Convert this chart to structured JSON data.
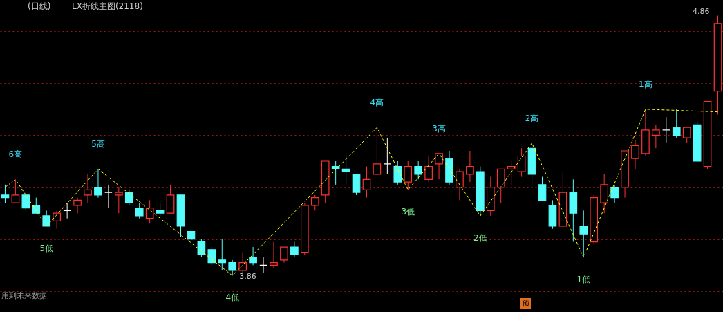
{
  "chart_data": {
    "type": "candlestick",
    "title": "(日线)",
    "subtitle": "LX折线主图(2118)",
    "categories": [
      null,
      null,
      null,
      null,
      null,
      null,
      null,
      null,
      null,
      null,
      null,
      null,
      null,
      null,
      null,
      null,
      null,
      null,
      null,
      null,
      null,
      null,
      null,
      null,
      null,
      null,
      null,
      null,
      null,
      null,
      null,
      null,
      null,
      null,
      null,
      null,
      null,
      null,
      null,
      null,
      null,
      null,
      null,
      null,
      null,
      null,
      null,
      null,
      null,
      null,
      null,
      null,
      null,
      null,
      null,
      null,
      null,
      null,
      null,
      null,
      null,
      null,
      null,
      null,
      null,
      null,
      null,
      null,
      null,
      null
    ],
    "ohlc": [
      [
        4.17,
        4.21,
        4.14,
        4.16
      ],
      [
        4.14,
        4.23,
        4.14,
        4.17
      ],
      [
        4.17,
        4.18,
        4.11,
        4.12
      ],
      [
        4.13,
        4.16,
        4.1,
        4.1
      ],
      [
        4.09,
        4.11,
        4.05,
        4.05
      ],
      [
        4.07,
        4.11,
        4.04,
        4.1
      ],
      [
        4.11,
        4.14,
        4.08,
        4.11
      ],
      [
        4.13,
        4.16,
        4.1,
        4.15
      ],
      [
        4.17,
        4.25,
        4.14,
        4.19
      ],
      [
        4.2,
        4.27,
        4.16,
        4.17
      ],
      [
        4.18,
        4.21,
        4.12,
        4.18
      ],
      [
        4.17,
        4.2,
        4.1,
        4.18
      ],
      [
        4.18,
        4.19,
        4.13,
        4.14
      ],
      [
        4.12,
        4.14,
        4.08,
        4.09
      ],
      [
        4.08,
        4.15,
        4.06,
        4.12
      ],
      [
        4.11,
        4.14,
        4.09,
        4.1
      ],
      [
        4.1,
        4.21,
        4.1,
        4.17
      ],
      [
        4.17,
        4.17,
        4.01,
        4.05
      ],
      [
        4.03,
        4.05,
        3.97,
        4.0
      ],
      [
        3.99,
        4.0,
        3.93,
        3.94
      ],
      [
        3.96,
        3.97,
        3.9,
        3.91
      ],
      [
        3.92,
        4.0,
        3.88,
        3.91
      ],
      [
        3.91,
        3.92,
        3.86,
        3.88
      ],
      [
        3.88,
        3.95,
        3.87,
        3.91
      ],
      [
        3.93,
        3.97,
        3.9,
        3.91
      ],
      [
        3.9,
        3.93,
        3.87,
        3.9
      ],
      [
        3.9,
        3.99,
        3.89,
        3.91
      ],
      [
        3.92,
        3.97,
        3.91,
        3.97
      ],
      [
        3.97,
        3.99,
        3.93,
        3.94
      ],
      [
        3.95,
        4.14,
        3.94,
        4.13
      ],
      [
        4.13,
        4.17,
        4.11,
        4.16
      ],
      [
        4.17,
        4.3,
        4.14,
        4.3
      ],
      [
        4.28,
        4.3,
        4.21,
        4.27
      ],
      [
        4.27,
        4.33,
        4.21,
        4.26
      ],
      [
        4.25,
        4.25,
        4.17,
        4.18
      ],
      [
        4.19,
        4.28,
        4.16,
        4.23
      ],
      [
        4.25,
        4.43,
        4.24,
        4.29
      ],
      [
        4.29,
        4.39,
        4.25,
        4.29
      ],
      [
        4.28,
        4.3,
        4.21,
        4.22
      ],
      [
        4.22,
        4.3,
        4.19,
        4.28
      ],
      [
        4.28,
        4.3,
        4.23,
        4.25
      ],
      [
        4.23,
        4.32,
        4.22,
        4.28
      ],
      [
        4.29,
        4.33,
        4.23,
        4.33
      ],
      [
        4.31,
        4.34,
        4.21,
        4.22
      ],
      [
        4.2,
        4.27,
        4.15,
        4.26
      ],
      [
        4.25,
        4.34,
        4.22,
        4.28
      ],
      [
        4.26,
        4.28,
        4.09,
        4.11
      ],
      [
        4.11,
        4.24,
        4.09,
        4.2
      ],
      [
        4.2,
        4.27,
        4.14,
        4.27
      ],
      [
        4.27,
        4.3,
        4.21,
        4.28
      ],
      [
        4.26,
        4.35,
        4.24,
        4.32
      ],
      [
        4.35,
        4.37,
        4.2,
        4.25
      ],
      [
        4.21,
        4.24,
        4.15,
        4.15
      ],
      [
        4.13,
        4.15,
        4.04,
        4.05
      ],
      [
        4.05,
        4.26,
        4.04,
        4.18
      ],
      [
        4.18,
        4.23,
        3.99,
        4.1
      ],
      [
        4.05,
        4.11,
        3.93,
        4.02
      ],
      [
        3.99,
        4.17,
        3.98,
        4.16
      ],
      [
        4.14,
        4.25,
        4.1,
        4.21
      ],
      [
        4.2,
        4.21,
        4.14,
        4.16
      ],
      [
        4.2,
        4.34,
        4.16,
        4.34
      ],
      [
        4.31,
        4.38,
        4.27,
        4.36
      ],
      [
        4.33,
        4.5,
        4.32,
        4.42
      ],
      [
        4.4,
        4.44,
        4.35,
        4.42
      ],
      [
        4.42,
        4.47,
        4.37,
        4.42
      ],
      [
        4.43,
        4.5,
        4.39,
        4.4
      ],
      [
        4.39,
        4.43,
        4.37,
        4.43
      ],
      [
        4.44,
        4.45,
        4.3,
        4.3
      ],
      [
        4.28,
        4.53,
        4.27,
        4.53
      ],
      [
        4.57,
        4.86,
        4.48,
        4.83
      ]
    ],
    "colors": [
      "#54fcfc",
      "#ff3232",
      "#54fcfc",
      "#54fcfc",
      "#54fcfc",
      "#ff3232",
      "#ffffff",
      "#ff3232",
      "#ff3232",
      "#54fcfc",
      "#ffffff",
      "#ff3232",
      "#54fcfc",
      "#54fcfc",
      "#ff3232",
      "#54fcfc",
      "#ff3232",
      "#54fcfc",
      "#54fcfc",
      "#54fcfc",
      "#54fcfc",
      "#54fcfc",
      "#54fcfc",
      "#ff3232",
      "#54fcfc",
      "#ffffff",
      "#ff3232",
      "#ff3232",
      "#54fcfc",
      "#ff3232",
      "#ff3232",
      "#ff3232",
      "#54fcfc",
      "#54fcfc",
      "#54fcfc",
      "#ff3232",
      "#ff3232",
      "#ffffff",
      "#54fcfc",
      "#ff3232",
      "#54fcfc",
      "#ff3232",
      "#ff3232",
      "#54fcfc",
      "#ff3232",
      "#ff3232",
      "#54fcfc",
      "#ff3232",
      "#ff3232",
      "#ff3232",
      "#ff3232",
      "#54fcfc",
      "#54fcfc",
      "#54fcfc",
      "#ff3232",
      "#54fcfc",
      "#54fcfc",
      "#ff3232",
      "#ff3232",
      "#54fcfc",
      "#ff3232",
      "#ff3232",
      "#ff3232",
      "#ff3232",
      "#ffffff",
      "#54fcfc",
      "#ff3232",
      "#54fcfc",
      "#ff3232",
      "#ff3232"
    ],
    "value_labels": [
      null,
      null,
      null,
      null,
      null,
      null,
      null,
      null,
      null,
      null,
      null,
      null,
      null,
      null,
      null,
      null,
      null,
      null,
      null,
      null,
      null,
      null,
      "3.86",
      null,
      null,
      null,
      null,
      null,
      null,
      null,
      null,
      null,
      null,
      null,
      null,
      null,
      null,
      null,
      null,
      null,
      null,
      null,
      null,
      null,
      null,
      null,
      null,
      null,
      null,
      null,
      null,
      null,
      null,
      null,
      null,
      null,
      null,
      null,
      null,
      null,
      null,
      null,
      null,
      null,
      null,
      null,
      null,
      null,
      null,
      "4.86"
    ],
    "series": [
      {
        "type": "line",
        "color": "#ffff00",
        "line_style": "dashed",
        "values": [
          4.2,
          4.23,
          null,
          null,
          4.05,
          null,
          null,
          null,
          null,
          4.27,
          null,
          null,
          null,
          null,
          null,
          null,
          null,
          null,
          null,
          null,
          null,
          null,
          3.86,
          null,
          null,
          null,
          null,
          null,
          null,
          null,
          null,
          null,
          null,
          null,
          null,
          null,
          4.43,
          null,
          null,
          4.19,
          null,
          null,
          4.33,
          null,
          null,
          null,
          4.09,
          null,
          null,
          null,
          null,
          4.37,
          null,
          null,
          null,
          null,
          3.93,
          null,
          null,
          null,
          null,
          null,
          4.5,
          null,
          null,
          null,
          null,
          null,
          null,
          4.49
        ]
      }
    ],
    "annotations": [
      {
        "text": "6高",
        "y": 4.23
      },
      {
        "text": "5低",
        "y": 4.05
      },
      {
        "text": "5高",
        "y": 4.27
      },
      {
        "text": "4低",
        "y": 3.86
      },
      {
        "text": "4高",
        "y": 4.43
      },
      {
        "text": "3低",
        "y": 4.19
      },
      {
        "text": "3高",
        "y": 4.33
      },
      {
        "text": "2低",
        "y": 4.09
      },
      {
        "text": "2高",
        "y": 4.37
      },
      {
        "text": "1低",
        "y": 3.93
      },
      {
        "text": "1高",
        "y": 4.5
      },
      "用到未来数据",
      "预"
    ],
    "ylim": [
      3.72,
      4.92
    ],
    "yticks": [
      {
        "value": 3.8,
        "label": null
      },
      {
        "value": 4.0,
        "label": null
      },
      {
        "value": 4.2,
        "label": null
      },
      {
        "value": 4.4,
        "label": null
      },
      {
        "value": 4.6,
        "label": null
      },
      {
        "value": 4.8,
        "label": null
      }
    ],
    "grid": "y"
  }
}
